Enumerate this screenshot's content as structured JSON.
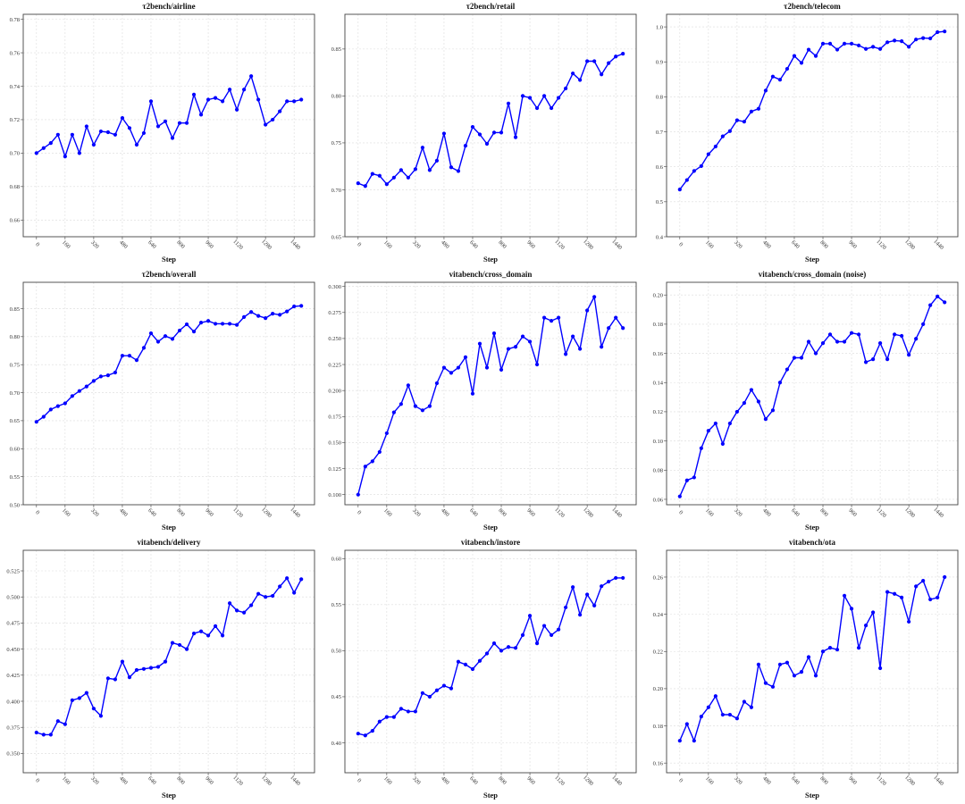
{
  "chart_data": [
    {
      "type": "line",
      "title": "τ2bench/airline",
      "xlabel": "Step",
      "color": "#0000ff",
      "grid": true,
      "x": [
        0,
        40,
        80,
        120,
        160,
        200,
        240,
        280,
        320,
        360,
        400,
        440,
        480,
        520,
        560,
        600,
        640,
        680,
        720,
        760,
        800,
        840,
        880,
        920,
        960,
        1000,
        1040,
        1080,
        1120,
        1160,
        1200,
        1240,
        1280,
        1320,
        1360,
        1400,
        1440,
        1480
      ],
      "y": [
        0.7,
        0.703,
        0.706,
        0.711,
        0.698,
        0.711,
        0.7,
        0.716,
        0.705,
        0.713,
        0.7125,
        0.711,
        0.721,
        0.715,
        0.705,
        0.712,
        0.731,
        0.716,
        0.719,
        0.709,
        0.718,
        0.718,
        0.735,
        0.723,
        0.732,
        0.733,
        0.731,
        0.738,
        0.726,
        0.738,
        0.746,
        0.732,
        0.717,
        0.72,
        0.725,
        0.731,
        0.731,
        0.732
      ],
      "xlim": [
        -74,
        1554
      ],
      "ylim": [
        0.65,
        0.783
      ],
      "xtick_labels": [
        "0",
        "160",
        "320",
        "480",
        "640",
        "800",
        "960",
        "1120",
        "1280",
        "1440"
      ],
      "ytick_labels": [
        "0.66",
        "0.68",
        "0.70",
        "0.72",
        "0.74",
        "0.76",
        "0.78"
      ]
    },
    {
      "type": "line",
      "title": "τ2bench/retail",
      "xlabel": "Step",
      "color": "#0000ff",
      "grid": true,
      "x": [
        0,
        40,
        80,
        120,
        160,
        200,
        240,
        280,
        320,
        360,
        400,
        440,
        480,
        520,
        560,
        600,
        640,
        680,
        720,
        760,
        800,
        840,
        880,
        920,
        960,
        1000,
        1040,
        1080,
        1120,
        1160,
        1200,
        1240,
        1280,
        1320,
        1360,
        1400,
        1440,
        1480
      ],
      "y": [
        0.707,
        0.704,
        0.717,
        0.715,
        0.706,
        0.713,
        0.721,
        0.713,
        0.722,
        0.745,
        0.721,
        0.731,
        0.76,
        0.724,
        0.72,
        0.747,
        0.767,
        0.759,
        0.749,
        0.761,
        0.761,
        0.792,
        0.756,
        0.8,
        0.798,
        0.787,
        0.8,
        0.787,
        0.798,
        0.808,
        0.824,
        0.817,
        0.837,
        0.837,
        0.823,
        0.835,
        0.842,
        0.845
      ],
      "xlim": [
        -74,
        1554
      ],
      "ylim": [
        0.65,
        0.887
      ],
      "xtick_labels": [
        "0",
        "160",
        "320",
        "480",
        "640",
        "800",
        "960",
        "1120",
        "1280",
        "1440"
      ],
      "ytick_labels": [
        "0.65",
        "0.70",
        "0.75",
        "0.80",
        "0.85"
      ]
    },
    {
      "type": "line",
      "title": "τ2bench/telecom",
      "xlabel": "Step",
      "color": "#0000ff",
      "grid": true,
      "x": [
        0,
        40,
        80,
        120,
        160,
        200,
        240,
        280,
        320,
        360,
        400,
        440,
        480,
        520,
        560,
        600,
        640,
        680,
        720,
        760,
        800,
        840,
        880,
        920,
        960,
        1000,
        1040,
        1080,
        1120,
        1160,
        1200,
        1240,
        1280,
        1320,
        1360,
        1400,
        1440,
        1480
      ],
      "y": [
        0.535,
        0.562,
        0.588,
        0.602,
        0.636,
        0.658,
        0.687,
        0.702,
        0.733,
        0.729,
        0.758,
        0.766,
        0.818,
        0.858,
        0.849,
        0.88,
        0.917,
        0.897,
        0.935,
        0.917,
        0.952,
        0.952,
        0.935,
        0.952,
        0.952,
        0.947,
        0.937,
        0.943,
        0.937,
        0.956,
        0.961,
        0.959,
        0.943,
        0.964,
        0.968,
        0.967,
        0.985,
        0.987
      ],
      "xlim": [
        -74,
        1554
      ],
      "ylim": [
        0.4,
        1.036
      ],
      "xtick_labels": [
        "0",
        "160",
        "320",
        "480",
        "640",
        "800",
        "960",
        "1120",
        "1280",
        "1440"
      ],
      "ytick_labels": [
        "0.4",
        "0.5",
        "0.6",
        "0.7",
        "0.8",
        "0.9",
        "1.0"
      ]
    },
    {
      "type": "line",
      "title": "τ2bench/overall",
      "xlabel": "Step",
      "color": "#0000ff",
      "grid": true,
      "x": [
        0,
        40,
        80,
        120,
        160,
        200,
        240,
        280,
        320,
        360,
        400,
        440,
        480,
        520,
        560,
        600,
        640,
        680,
        720,
        760,
        800,
        840,
        880,
        920,
        960,
        1000,
        1040,
        1080,
        1120,
        1160,
        1200,
        1240,
        1280,
        1320,
        1360,
        1400,
        1440,
        1480
      ],
      "y": [
        0.648,
        0.657,
        0.67,
        0.676,
        0.681,
        0.694,
        0.703,
        0.711,
        0.721,
        0.729,
        0.731,
        0.736,
        0.766,
        0.766,
        0.758,
        0.78,
        0.806,
        0.791,
        0.801,
        0.796,
        0.811,
        0.822,
        0.809,
        0.825,
        0.828,
        0.823,
        0.823,
        0.823,
        0.821,
        0.835,
        0.844,
        0.837,
        0.833,
        0.841,
        0.839,
        0.845,
        0.854,
        0.855
      ],
      "xlim": [
        -74,
        1554
      ],
      "ylim": [
        0.5,
        0.897
      ],
      "xtick_labels": [
        "0",
        "160",
        "320",
        "480",
        "640",
        "800",
        "960",
        "1120",
        "1280",
        "1440"
      ],
      "ytick_labels": [
        "0.50",
        "0.55",
        "0.60",
        "0.65",
        "0.70",
        "0.75",
        "0.80",
        "0.85"
      ]
    },
    {
      "type": "line",
      "title": "vitabench/cross_domain",
      "xlabel": "Step",
      "color": "#0000ff",
      "grid": true,
      "x": [
        0,
        40,
        80,
        120,
        160,
        200,
        240,
        280,
        320,
        360,
        400,
        440,
        480,
        520,
        560,
        600,
        640,
        680,
        720,
        760,
        800,
        840,
        880,
        920,
        960,
        1000,
        1040,
        1080,
        1120,
        1160,
        1200,
        1240,
        1280,
        1320,
        1360,
        1400,
        1440,
        1480
      ],
      "y": [
        0.1,
        0.127,
        0.132,
        0.141,
        0.159,
        0.179,
        0.187,
        0.205,
        0.185,
        0.181,
        0.185,
        0.207,
        0.222,
        0.217,
        0.222,
        0.232,
        0.197,
        0.245,
        0.222,
        0.255,
        0.22,
        0.24,
        0.242,
        0.252,
        0.247,
        0.225,
        0.27,
        0.267,
        0.27,
        0.235,
        0.252,
        0.24,
        0.277,
        0.29,
        0.242,
        0.26,
        0.27,
        0.26
      ],
      "xlim": [
        -74,
        1554
      ],
      "ylim": [
        0.0903,
        0.304
      ],
      "xtick_labels": [
        "0",
        "160",
        "320",
        "480",
        "640",
        "800",
        "960",
        "1120",
        "1280",
        "1440"
      ],
      "ytick_labels": [
        "0.100",
        "0.125",
        "0.150",
        "0.175",
        "0.200",
        "0.225",
        "0.250",
        "0.275",
        "0.300"
      ]
    },
    {
      "type": "line",
      "title": "vitabench/cross_domain (noise)",
      "xlabel": "Step",
      "color": "#0000ff",
      "grid": true,
      "x": [
        0,
        40,
        80,
        120,
        160,
        200,
        240,
        280,
        320,
        360,
        400,
        440,
        480,
        520,
        560,
        600,
        640,
        680,
        720,
        760,
        800,
        840,
        880,
        920,
        960,
        1000,
        1040,
        1080,
        1120,
        1160,
        1200,
        1240,
        1280,
        1320,
        1360,
        1400,
        1440,
        1480
      ],
      "y": [
        0.062,
        0.073,
        0.075,
        0.095,
        0.107,
        0.112,
        0.098,
        0.112,
        0.12,
        0.126,
        0.135,
        0.127,
        0.115,
        0.121,
        0.14,
        0.149,
        0.157,
        0.157,
        0.168,
        0.16,
        0.167,
        0.173,
        0.168,
        0.168,
        0.174,
        0.173,
        0.154,
        0.156,
        0.167,
        0.156,
        0.173,
        0.172,
        0.159,
        0.17,
        0.18,
        0.193,
        0.199,
        0.195
      ],
      "xlim": [
        -74,
        1554
      ],
      "ylim": [
        0.0563,
        0.2087
      ],
      "xtick_labels": [
        "0",
        "160",
        "320",
        "480",
        "640",
        "800",
        "960",
        "1120",
        "1280",
        "1440"
      ],
      "ytick_labels": [
        "0.06",
        "0.08",
        "0.10",
        "0.12",
        "0.14",
        "0.16",
        "0.18",
        "0.20"
      ]
    },
    {
      "type": "line",
      "title": "vitabench/delivery",
      "xlabel": "Step",
      "color": "#0000ff",
      "grid": true,
      "x": [
        0,
        40,
        80,
        120,
        160,
        200,
        240,
        280,
        320,
        360,
        400,
        440,
        480,
        520,
        560,
        600,
        640,
        680,
        720,
        760,
        800,
        840,
        880,
        920,
        960,
        1000,
        1040,
        1080,
        1120,
        1160,
        1200,
        1240,
        1280,
        1320,
        1360,
        1400,
        1440,
        1480
      ],
      "y": [
        0.37,
        0.368,
        0.368,
        0.381,
        0.378,
        0.401,
        0.403,
        0.408,
        0.393,
        0.386,
        0.422,
        0.421,
        0.438,
        0.423,
        0.43,
        0.431,
        0.432,
        0.433,
        0.438,
        0.456,
        0.454,
        0.45,
        0.465,
        0.467,
        0.463,
        0.472,
        0.463,
        0.494,
        0.487,
        0.485,
        0.492,
        0.503,
        0.5,
        0.501,
        0.51,
        0.518,
        0.504,
        0.517
      ],
      "xlim": [
        -74,
        1554
      ],
      "ylim": [
        0.3315,
        0.5447
      ],
      "xtick_labels": [
        "0",
        "160",
        "320",
        "480",
        "640",
        "800",
        "960",
        "1120",
        "1280",
        "1440"
      ],
      "ytick_labels": [
        "0.350",
        "0.375",
        "0.400",
        "0.425",
        "0.450",
        "0.475",
        "0.500",
        "0.525"
      ]
    },
    {
      "type": "line",
      "title": "vitabench/instore",
      "xlabel": "Step",
      "color": "#0000ff",
      "grid": true,
      "x": [
        0,
        40,
        80,
        120,
        160,
        200,
        240,
        280,
        320,
        360,
        400,
        440,
        480,
        520,
        560,
        600,
        640,
        680,
        720,
        760,
        800,
        840,
        880,
        920,
        960,
        1000,
        1040,
        1080,
        1120,
        1160,
        1200,
        1240,
        1280,
        1320,
        1360,
        1400,
        1440,
        1480
      ],
      "y": [
        0.41,
        0.408,
        0.413,
        0.423,
        0.428,
        0.428,
        0.437,
        0.434,
        0.434,
        0.454,
        0.45,
        0.457,
        0.462,
        0.459,
        0.488,
        0.485,
        0.48,
        0.489,
        0.497,
        0.508,
        0.5,
        0.504,
        0.503,
        0.517,
        0.538,
        0.508,
        0.527,
        0.517,
        0.523,
        0.547,
        0.569,
        0.539,
        0.561,
        0.549,
        0.57,
        0.575,
        0.579,
        0.579
      ],
      "xlim": [
        -74,
        1554
      ],
      "ylim": [
        0.3675,
        0.609
      ],
      "xtick_labels": [
        "0",
        "160",
        "320",
        "480",
        "640",
        "800",
        "960",
        "1120",
        "1280",
        "1440"
      ],
      "ytick_labels": [
        "0.40",
        "0.45",
        "0.50",
        "0.55",
        "0.60"
      ]
    },
    {
      "type": "line",
      "title": "vitabench/ota",
      "xlabel": "Step",
      "color": "#0000ff",
      "grid": true,
      "x": [
        0,
        40,
        80,
        120,
        160,
        200,
        240,
        280,
        320,
        360,
        400,
        440,
        480,
        520,
        560,
        600,
        640,
        680,
        720,
        760,
        800,
        840,
        880,
        920,
        960,
        1000,
        1040,
        1080,
        1120,
        1160,
        1200,
        1240,
        1280,
        1320,
        1360,
        1400,
        1440,
        1480
      ],
      "y": [
        0.172,
        0.181,
        0.172,
        0.185,
        0.19,
        0.196,
        0.186,
        0.186,
        0.184,
        0.193,
        0.19,
        0.213,
        0.203,
        0.201,
        0.213,
        0.214,
        0.207,
        0.209,
        0.217,
        0.207,
        0.22,
        0.222,
        0.221,
        0.25,
        0.243,
        0.222,
        0.234,
        0.241,
        0.211,
        0.252,
        0.251,
        0.249,
        0.236,
        0.255,
        0.258,
        0.248,
        0.249,
        0.26
      ],
      "xlim": [
        -74,
        1554
      ],
      "ylim": [
        0.1548,
        0.2744
      ],
      "xtick_labels": [
        "0",
        "160",
        "320",
        "480",
        "640",
        "800",
        "960",
        "1120",
        "1280",
        "1440"
      ],
      "ytick_labels": [
        "0.16",
        "0.18",
        "0.20",
        "0.22",
        "0.24",
        "0.26"
      ]
    }
  ]
}
